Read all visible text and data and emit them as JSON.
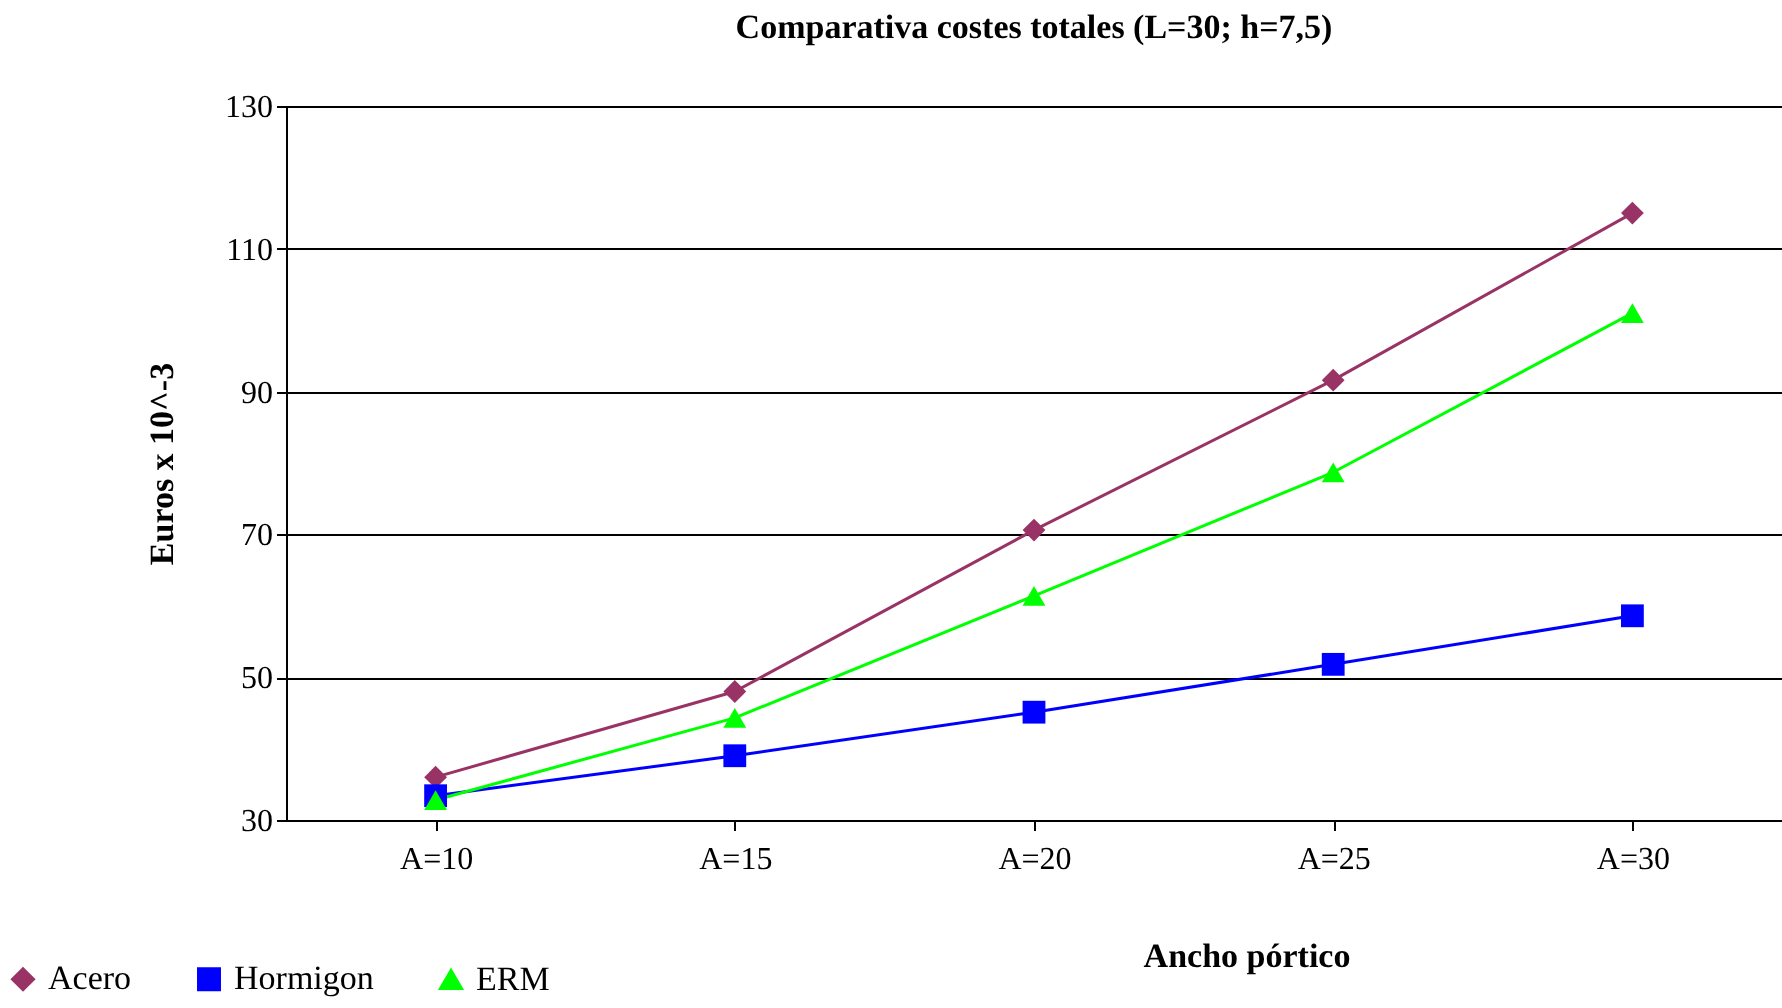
{
  "chart_data": {
    "type": "line",
    "title": "Comparativa costes totales (L=30; h=7,5)",
    "xlabel": "Ancho pórtico",
    "ylabel": "Euros x 10^-3",
    "categories": [
      "A=10",
      "A=15",
      "A=20",
      "A=25",
      "A=30"
    ],
    "series": [
      {
        "name": "Acero",
        "color": "#993366",
        "marker": "diamond",
        "values": [
          36,
          48,
          70.6,
          91.6,
          115
        ]
      },
      {
        "name": "Hormigon",
        "color": "#0000ff",
        "marker": "square",
        "values": [
          33.4,
          39,
          45.1,
          51.8,
          58.6
        ]
      },
      {
        "name": "ERM",
        "color": "#00ff00",
        "marker": "triangle",
        "values": [
          32.8,
          44.3,
          61.4,
          78.7,
          101
        ]
      }
    ],
    "ylim": [
      30,
      130
    ],
    "yticks": [
      30,
      50,
      70,
      90,
      110,
      130
    ],
    "grid": "y",
    "legend": "bottom left",
    "line_style": "solid"
  }
}
